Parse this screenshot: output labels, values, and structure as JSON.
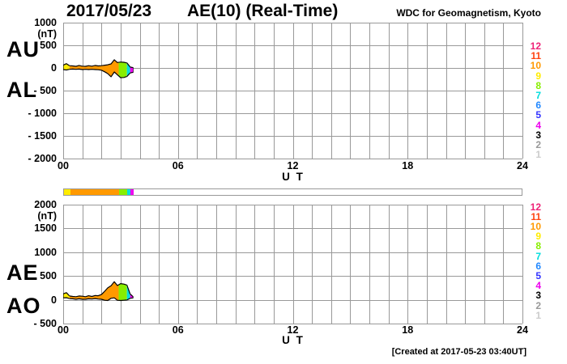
{
  "header": {
    "date": "2017/05/23",
    "title": "AE(10) (Real-Time)",
    "org": "WDC for Geomagnetism, Kyoto"
  },
  "footer": {
    "created": "[Created at 2017-05-23 03:40UT]"
  },
  "colors": {
    "grid": "#999999",
    "outline": "#000000",
    "background": "#ffffff"
  },
  "station_legend": [
    {
      "label": "12",
      "color": "#ee2277"
    },
    {
      "label": "11",
      "color": "#ff4411"
    },
    {
      "label": "10",
      "color": "#ff9900"
    },
    {
      "label": "9",
      "color": "#ffec00"
    },
    {
      "label": "8",
      "color": "#88ee00"
    },
    {
      "label": "7",
      "color": "#00dddd"
    },
    {
      "label": "6",
      "color": "#2288ff"
    },
    {
      "label": "5",
      "color": "#3333ff"
    },
    {
      "label": "4",
      "color": "#ee00ee"
    },
    {
      "label": "3",
      "color": "#000000"
    },
    {
      "label": "2",
      "color": "#999999"
    },
    {
      "label": "1",
      "color": "#cccccc"
    }
  ],
  "panels": [
    {
      "left_labels": [
        "AU",
        "AL"
      ],
      "unit": "(nT)",
      "y_ticks": [
        {
          "label": "1000",
          "value": 1000
        },
        {
          "label": "500",
          "value": 500
        },
        {
          "label": "0",
          "value": 0
        },
        {
          "label": "- 500",
          "value": -500
        },
        {
          "label": "- 1000",
          "value": -1000
        },
        {
          "label": "- 1500",
          "value": -1500
        },
        {
          "label": "- 2000",
          "value": -2000
        }
      ],
      "x_ticks": [
        {
          "label": "00",
          "hour": 0
        },
        {
          "label": "06",
          "hour": 6
        },
        {
          "label": "12",
          "hour": 12
        },
        {
          "label": "18",
          "hour": 18
        },
        {
          "label": "24",
          "hour": 24
        }
      ],
      "x_axis_label": "U T"
    },
    {
      "left_labels": [
        "AE",
        "AO"
      ],
      "unit": "(nT)",
      "y_ticks": [
        {
          "label": "2000",
          "value": 2000
        },
        {
          "label": "1500",
          "value": 1500
        },
        {
          "label": "1000",
          "value": 1000
        },
        {
          "label": "500",
          "value": 500
        },
        {
          "label": "0",
          "value": 0
        },
        {
          "label": "- 500",
          "value": -500
        }
      ],
      "x_ticks": [
        {
          "label": "00",
          "hour": 0
        },
        {
          "label": "06",
          "hour": 6
        },
        {
          "label": "12",
          "hour": 12
        },
        {
          "label": "18",
          "hour": 18
        },
        {
          "label": "24",
          "hour": 24
        }
      ],
      "x_axis_label": "U T"
    }
  ],
  "chart_data": [
    {
      "type": "area",
      "title": "AU / AL band, 2017/05/23 (Real-Time), values in nT vs hours UT",
      "xlabel": "U T",
      "ylabel": "nT",
      "xlim": [
        0,
        24
      ],
      "ylim": [
        -2000,
        1000
      ],
      "grid": "on, 1-hour vertical / 500 nT horizontal",
      "x": [
        0,
        0.17,
        0.33,
        0.5,
        0.67,
        0.83,
        1.0,
        1.17,
        1.33,
        1.5,
        1.67,
        1.83,
        2.0,
        2.17,
        2.33,
        2.5,
        2.67,
        2.83,
        3.0,
        3.17,
        3.33,
        3.5,
        3.67
      ],
      "series": [
        {
          "name": "AU",
          "values": [
            60,
            95,
            50,
            45,
            35,
            55,
            40,
            35,
            50,
            40,
            55,
            45,
            50,
            60,
            70,
            90,
            180,
            120,
            130,
            125,
            110,
            20,
            5
          ]
        },
        {
          "name": "AL",
          "values": [
            -35,
            -45,
            -30,
            -25,
            -30,
            -25,
            -35,
            -30,
            -35,
            -30,
            -35,
            -40,
            -50,
            -85,
            -125,
            -195,
            -90,
            -150,
            -215,
            -210,
            -190,
            -110,
            -95
          ]
        }
      ],
      "color_segments": [
        {
          "from_hour": 0.0,
          "to_hour": 0.33,
          "stations": 9,
          "color": "#ffec00"
        },
        {
          "from_hour": 0.33,
          "to_hour": 2.9,
          "stations": 10,
          "color": "#ff9900"
        },
        {
          "from_hour": 2.9,
          "to_hour": 3.33,
          "stations": 8,
          "color": "#88ee00"
        },
        {
          "from_hour": 3.33,
          "to_hour": 3.5,
          "stations": 7,
          "color": "#00dddd"
        },
        {
          "from_hour": 3.5,
          "to_hour": 3.67,
          "stations": 4,
          "color": "#ee00ee"
        }
      ],
      "legend": "right-side colored station counts 12..1"
    },
    {
      "type": "area",
      "title": "AE / AO band, 2017/05/23 (Real-Time), values in nT vs hours UT",
      "xlabel": "U T",
      "ylabel": "nT",
      "xlim": [
        0,
        24
      ],
      "ylim": [
        -500,
        2000
      ],
      "grid": "on, 1-hour vertical / 500 nT horizontal",
      "x": [
        0,
        0.17,
        0.33,
        0.5,
        0.67,
        0.83,
        1.0,
        1.17,
        1.33,
        1.5,
        1.67,
        1.83,
        2.0,
        2.17,
        2.33,
        2.5,
        2.67,
        2.83,
        3.0,
        3.17,
        3.33,
        3.5,
        3.67
      ],
      "series": [
        {
          "name": "AE",
          "values": [
            125,
            150,
            80,
            70,
            65,
            80,
            75,
            65,
            85,
            70,
            90,
            85,
            110,
            180,
            250,
            295,
            380,
            300,
            340,
            330,
            310,
            120,
            60
          ]
        },
        {
          "name": "AO",
          "values": [
            40,
            45,
            25,
            20,
            10,
            20,
            10,
            10,
            20,
            15,
            25,
            15,
            10,
            -10,
            -15,
            30,
            40,
            -10,
            -15,
            -10,
            -5,
            30,
            40
          ]
        }
      ],
      "color_segments": [
        {
          "from_hour": 0.0,
          "to_hour": 0.33,
          "stations": 9,
          "color": "#ffec00"
        },
        {
          "from_hour": 0.33,
          "to_hour": 2.9,
          "stations": 10,
          "color": "#ff9900"
        },
        {
          "from_hour": 2.9,
          "to_hour": 3.33,
          "stations": 8,
          "color": "#88ee00"
        },
        {
          "from_hour": 3.33,
          "to_hour": 3.5,
          "stations": 7,
          "color": "#00dddd"
        },
        {
          "from_hour": 3.5,
          "to_hour": 3.67,
          "stations": 4,
          "color": "#ee00ee"
        }
      ],
      "legend": "right-side colored station counts 12..1"
    }
  ]
}
